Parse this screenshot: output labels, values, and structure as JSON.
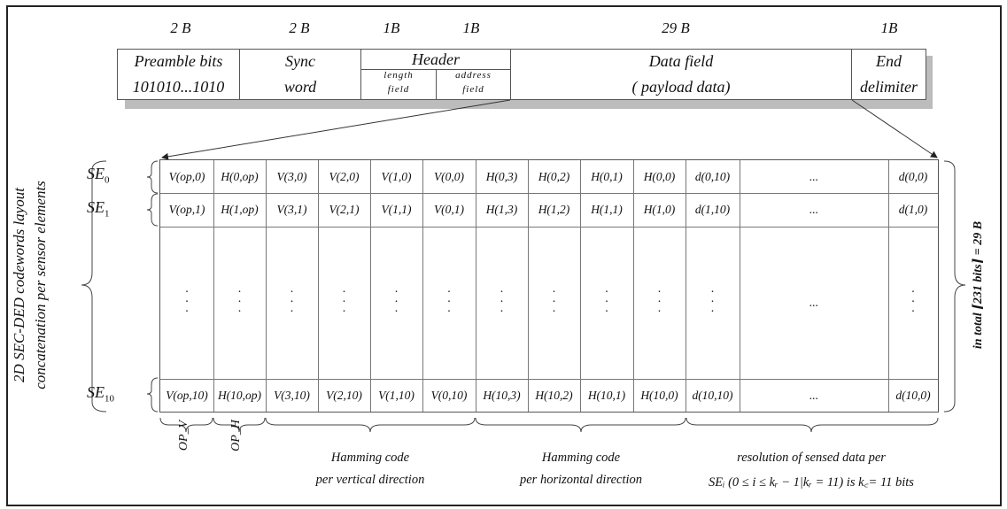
{
  "byte_sizes": {
    "preamble": "2 B",
    "sync": "2 B",
    "length": "1B",
    "address": "1B",
    "data": "29 B",
    "end": "1B"
  },
  "packet": {
    "preamble_line1": "Preamble bits",
    "preamble_line2": "101010...1010",
    "sync_line1": "Sync",
    "sync_line2": "word",
    "header_title": "Header",
    "length_line1": "length",
    "length_line2": "field",
    "address_line1": "address",
    "address_line2": "field",
    "data_line1": "Data field",
    "data_line2": "( payload  data)",
    "end_line1": "End",
    "end_line2": "delimiter"
  },
  "rows": [
    {
      "label_main": "SE",
      "label_sub": "0",
      "cells": [
        "V(op,0)",
        "H(0,op)",
        "V(3,0)",
        "V(2,0)",
        "V(1,0)",
        "V(0,0)",
        "H(0,3)",
        "H(0,2)",
        "H(0,1)",
        "H(0,0)",
        "d(0,10)",
        "...",
        "d(0,0)"
      ]
    },
    {
      "label_main": "SE",
      "label_sub": "1",
      "cells": [
        "V(op,1)",
        "H(1,op)",
        "V(3,1)",
        "V(2,1)",
        "V(1,1)",
        "V(0,1)",
        "H(1,3)",
        "H(1,2)",
        "H(1,1)",
        "H(1,0)",
        "d(1,10)",
        "...",
        "d(1,0)"
      ]
    },
    {
      "label_main": "SE",
      "label_sub": "10",
      "cells": [
        "V(op,10)",
        "H(10,op)",
        "V(3,10)",
        "V(2,10)",
        "V(1,10)",
        "V(0,10)",
        "H(10,3)",
        "H(10,2)",
        "H(10,1)",
        "H(10,0)",
        "d(10,10)",
        "...",
        "d(10,0)"
      ]
    }
  ],
  "middle_ellipsis": "...",
  "left_caption_line1": "2D SEC-DED codewords layout",
  "left_caption_line2": "concatenation per sensor elements",
  "right_caption": "in  total  ⌈231 bits⌉ = 29 B",
  "bottom": {
    "op_v": "OP_V",
    "op_h": "OP_H",
    "hamming_v_line1": "Hamming  code",
    "hamming_v_line2": "per vertical direction",
    "hamming_h_line1": "Hamming  code",
    "hamming_h_line2": "per  horizontal  direction",
    "res_line1": "resolution  of  sensed data  per",
    "res_line2": "SEᵢ  (0 ≤ i ≤ kᵣ − 1|kᵣ = 11)  is  k꜀= 11  bits"
  }
}
